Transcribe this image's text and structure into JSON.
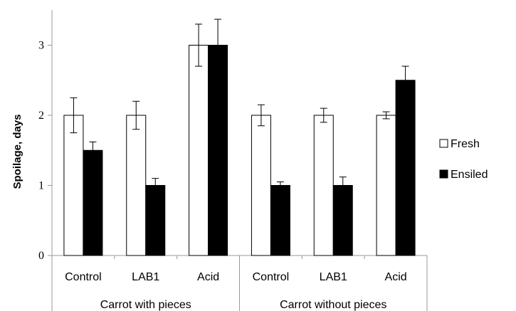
{
  "chart_data": {
    "type": "bar",
    "title": "",
    "ylabel": "Spoilage, days",
    "ylim": [
      0,
      3.4
    ],
    "yticks": [
      "0",
      "1",
      "2",
      "3"
    ],
    "grid": false,
    "legend_position": "right",
    "groups": [
      {
        "label": "Carrot with pieces",
        "categories": [
          "Control",
          "LAB1",
          "Acid"
        ]
      },
      {
        "label": "Carrot without pieces",
        "categories": [
          "Control",
          "LAB1",
          "Acid"
        ]
      }
    ],
    "categories": [
      "Control",
      "LAB1",
      "Acid",
      "Control",
      "LAB1",
      "Acid"
    ],
    "series": [
      {
        "name": "Fresh",
        "color": "#ffffff",
        "values": [
          2.0,
          2.0,
          3.0,
          2.0,
          2.0,
          2.0
        ],
        "errors": [
          0.25,
          0.2,
          0.3,
          0.15,
          0.1,
          0.05
        ]
      },
      {
        "name": "Ensiled",
        "color": "#000000",
        "values": [
          1.5,
          1.0,
          3.0,
          1.0,
          1.0,
          2.5
        ],
        "errors": [
          0.12,
          0.1,
          0.37,
          0.05,
          0.12,
          0.2
        ]
      }
    ]
  }
}
